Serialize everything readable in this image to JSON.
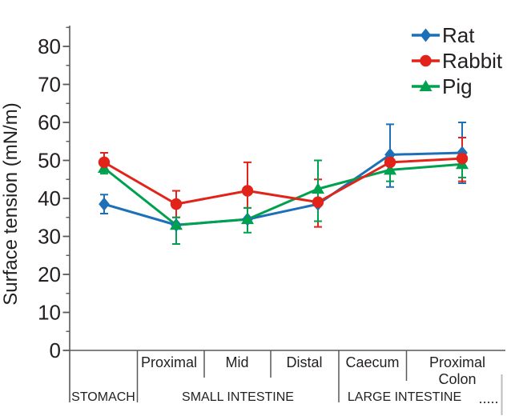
{
  "chart_data": {
    "type": "line",
    "title": "",
    "xlabel": "",
    "ylabel": "Surface tension (mN/m)",
    "ylim": [
      0,
      86
    ],
    "yticks": [
      0,
      10,
      20,
      30,
      40,
      50,
      60,
      70,
      80
    ],
    "minor_tick_step": 5,
    "grid": false,
    "legend_position": "top-right",
    "categories": [
      "Stomach",
      "Proximal small intestine",
      "Mid small intestine",
      "Distal small intestine",
      "Caecum",
      "Proximal colon"
    ],
    "sub_labels": [
      {
        "lines": []
      },
      {
        "lines": [
          "Proximal"
        ]
      },
      {
        "lines": [
          "Mid"
        ]
      },
      {
        "lines": [
          "Distal"
        ]
      },
      {
        "lines": [
          "Caecum"
        ]
      },
      {
        "lines": [
          "Proximal",
          "Colon"
        ]
      }
    ],
    "groups": [
      {
        "label": "STOMACH"
      },
      {
        "label": "SMALL INTESTINE"
      },
      {
        "label": "LARGE INTESTINE"
      }
    ],
    "series": [
      {
        "name": "Rat",
        "marker": "diamond",
        "color": "#1d70b7",
        "values": [
          38.5,
          33,
          34.5,
          38.5,
          51.5,
          52
        ],
        "err_up": [
          2.5,
          0,
          0,
          0,
          8,
          8
        ],
        "err_down": [
          2.5,
          0,
          0,
          0,
          8.5,
          8
        ]
      },
      {
        "name": "Rabbit",
        "marker": "circle",
        "color": "#e2231a",
        "values": [
          49.5,
          38.5,
          42,
          39,
          49.5,
          50.5
        ],
        "err_up": [
          2.5,
          3.5,
          7.5,
          6,
          0,
          5.5
        ],
        "err_down": [
          2,
          3.5,
          4.5,
          6.5,
          0,
          6
        ]
      },
      {
        "name": "Pig",
        "marker": "triangle",
        "color": "#00a14e",
        "values": [
          48,
          33,
          34.5,
          42.5,
          47.5,
          49
        ],
        "err_up": [
          1.5,
          2,
          3,
          7.5,
          2.5,
          2.5
        ],
        "err_down": [
          1.5,
          5,
          3.5,
          8.5,
          3,
          3.5
        ]
      }
    ],
    "axis_color": "#58595b",
    "text_color": "#231f20"
  }
}
